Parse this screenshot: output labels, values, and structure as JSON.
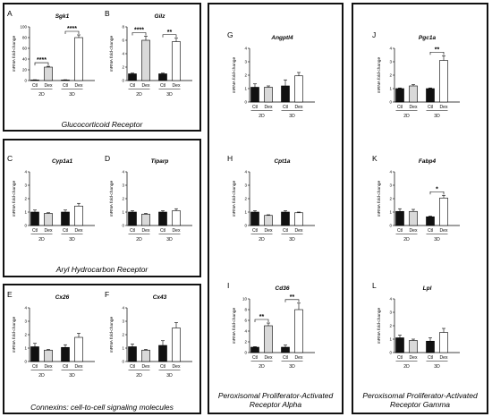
{
  "colors": {
    "ctl": "#111111",
    "dex_2d": "#d9d9d9",
    "dex_3d": "#ffffff",
    "stroke": "#000000"
  },
  "groups": [
    {
      "id": "gr",
      "title": "Glucocorticoid Receptor"
    },
    {
      "id": "ahr",
      "title": "Aryl Hydrocarbon Receptor"
    },
    {
      "id": "cx",
      "title": "Connexins: cell-to-cell signaling molecules"
    },
    {
      "id": "ppara",
      "title": "Peroxisomal Proliferator-Activated Receptor Alpha"
    },
    {
      "id": "pparg",
      "title": "Peroxisomal Proliferator-Activated Receptor Gamma"
    }
  ],
  "chart_data": [
    {
      "type": "bar",
      "letter": "A",
      "title": "Sgk1",
      "ylabel": "mRNA fold-change",
      "ylim": [
        0,
        100
      ],
      "yticks": [
        0,
        20,
        40,
        60,
        80,
        100
      ],
      "categories": [
        "Ctl",
        "Dex",
        "Ctl",
        "Dex"
      ],
      "conditions": [
        "2D",
        "3D"
      ],
      "values": [
        1,
        25,
        1,
        80
      ],
      "errors": [
        0.5,
        1.5,
        0.5,
        5
      ],
      "significance": [
        {
          "from": 0,
          "to": 1,
          "label": "****"
        },
        {
          "from": 2,
          "to": 3,
          "label": "****"
        }
      ]
    },
    {
      "type": "bar",
      "letter": "B",
      "title": "Gilz",
      "ylabel": "mRNA fold-change",
      "ylim": [
        0,
        8
      ],
      "yticks": [
        0,
        2,
        4,
        6,
        8
      ],
      "categories": [
        "Ctl",
        "Dex",
        "Ctl",
        "Dex"
      ],
      "conditions": [
        "2D",
        "3D"
      ],
      "values": [
        1,
        6,
        1,
        5.8
      ],
      "errors": [
        0.1,
        0.6,
        0.1,
        0.5
      ],
      "significance": [
        {
          "from": 0,
          "to": 1,
          "label": "****"
        },
        {
          "from": 2,
          "to": 3,
          "label": "**"
        }
      ]
    },
    {
      "type": "bar",
      "letter": "C",
      "title": "Cyp1a1",
      "ylabel": "mRNA fold-change",
      "ylim": [
        0,
        4
      ],
      "yticks": [
        0,
        1,
        2,
        3,
        4
      ],
      "categories": [
        "Ctl",
        "Dex",
        "Ctl",
        "Dex"
      ],
      "conditions": [
        "2D",
        "3D"
      ],
      "values": [
        1,
        0.9,
        1,
        1.45
      ],
      "errors": [
        0.15,
        0.05,
        0.15,
        0.2
      ],
      "significance": []
    },
    {
      "type": "bar",
      "letter": "D",
      "title": "Tiparp",
      "ylabel": "mRNA fold-change",
      "ylim": [
        0,
        4
      ],
      "yticks": [
        0,
        1,
        2,
        3,
        4
      ],
      "categories": [
        "Ctl",
        "Dex",
        "Ctl",
        "Dex"
      ],
      "conditions": [
        "2D",
        "3D"
      ],
      "values": [
        1,
        0.85,
        1,
        1.1
      ],
      "errors": [
        0.1,
        0.05,
        0.1,
        0.15
      ],
      "significance": []
    },
    {
      "type": "bar",
      "letter": "E",
      "title": "Cx26",
      "ylabel": "mRNA fold-change",
      "ylim": [
        0,
        4
      ],
      "yticks": [
        0,
        1,
        2,
        3,
        4
      ],
      "categories": [
        "Ctl",
        "Dex",
        "Ctl",
        "Dex"
      ],
      "conditions": [
        "2D",
        "3D"
      ],
      "values": [
        1.1,
        0.85,
        1.05,
        1.8
      ],
      "errors": [
        0.25,
        0.05,
        0.2,
        0.3
      ],
      "significance": []
    },
    {
      "type": "bar",
      "letter": "F",
      "title": "Cx43",
      "ylabel": "mRNA fold-change",
      "ylim": [
        0,
        4
      ],
      "yticks": [
        0,
        1,
        2,
        3,
        4
      ],
      "categories": [
        "Ctl",
        "Dex",
        "Ctl",
        "Dex"
      ],
      "conditions": [
        "2D",
        "3D"
      ],
      "values": [
        1.1,
        0.85,
        1.2,
        2.5
      ],
      "errors": [
        0.2,
        0.05,
        0.35,
        0.4
      ],
      "significance": []
    },
    {
      "type": "bar",
      "letter": "G",
      "title": "Angptl4",
      "ylabel": "mRNA fold-change",
      "ylim": [
        0,
        4
      ],
      "yticks": [
        0,
        1,
        2,
        3,
        4
      ],
      "categories": [
        "Ctl",
        "Dex",
        "Ctl",
        "Dex"
      ],
      "conditions": [
        "2D",
        "3D"
      ],
      "values": [
        1.1,
        1.1,
        1.2,
        1.95
      ],
      "errors": [
        0.25,
        0.1,
        0.45,
        0.25
      ],
      "significance": []
    },
    {
      "type": "bar",
      "letter": "H",
      "title": "Cpt1a",
      "ylabel": "mRNA fold-change",
      "ylim": [
        0,
        4
      ],
      "yticks": [
        0,
        1,
        2,
        3,
        4
      ],
      "categories": [
        "Ctl",
        "Dex",
        "Ctl",
        "Dex"
      ],
      "conditions": [
        "2D",
        "3D"
      ],
      "values": [
        1,
        0.75,
        1,
        0.95
      ],
      "errors": [
        0.1,
        0.05,
        0.1,
        0.05
      ],
      "significance": []
    },
    {
      "type": "bar",
      "letter": "I",
      "title": "Cd36",
      "ylabel": "mRNA fold-change",
      "ylim": [
        0,
        10
      ],
      "yticks": [
        0,
        2,
        4,
        6,
        8,
        10
      ],
      "categories": [
        "Ctl",
        "Dex",
        "Ctl",
        "Dex"
      ],
      "conditions": [
        "2D",
        "3D"
      ],
      "values": [
        1,
        5,
        1,
        8
      ],
      "errors": [
        0.1,
        0.5,
        0.4,
        1.2
      ],
      "significance": [
        {
          "from": 0,
          "to": 1,
          "label": "**"
        },
        {
          "from": 2,
          "to": 3,
          "label": "**"
        }
      ]
    },
    {
      "type": "bar",
      "letter": "J",
      "title": "Pgc1a",
      "ylabel": "mRNA fold-change",
      "ylim": [
        0,
        4
      ],
      "yticks": [
        0,
        1,
        2,
        3,
        4
      ],
      "categories": [
        "Ctl",
        "Dex",
        "Ctl",
        "Dex"
      ],
      "conditions": [
        "2D",
        "3D"
      ],
      "values": [
        1,
        1.2,
        1,
        3.1
      ],
      "errors": [
        0.05,
        0.1,
        0.05,
        0.35
      ],
      "significance": [
        {
          "from": 2,
          "to": 3,
          "label": "**"
        }
      ]
    },
    {
      "type": "bar",
      "letter": "K",
      "title": "Fabp4",
      "ylabel": "mRNA fold-change",
      "ylim": [
        0,
        4
      ],
      "yticks": [
        0,
        1,
        2,
        3,
        4
      ],
      "categories": [
        "Ctl",
        "Dex",
        "Ctl",
        "Dex"
      ],
      "conditions": [
        "2D",
        "3D"
      ],
      "values": [
        1.05,
        1.05,
        0.65,
        2.05
      ],
      "errors": [
        0.2,
        0.15,
        0.05,
        0.2
      ],
      "significance": [
        {
          "from": 2,
          "to": 3,
          "label": "*"
        }
      ]
    },
    {
      "type": "bar",
      "letter": "L",
      "title": "Lpl",
      "ylabel": "mRNA fold-change",
      "ylim": [
        0,
        4
      ],
      "yticks": [
        0,
        1,
        2,
        3,
        4
      ],
      "categories": [
        "Ctl",
        "Dex",
        "Ctl",
        "Dex"
      ],
      "conditions": [
        "2D",
        "3D"
      ],
      "values": [
        1.1,
        0.9,
        0.85,
        1.5
      ],
      "errors": [
        0.2,
        0.1,
        0.25,
        0.3
      ],
      "significance": []
    }
  ]
}
